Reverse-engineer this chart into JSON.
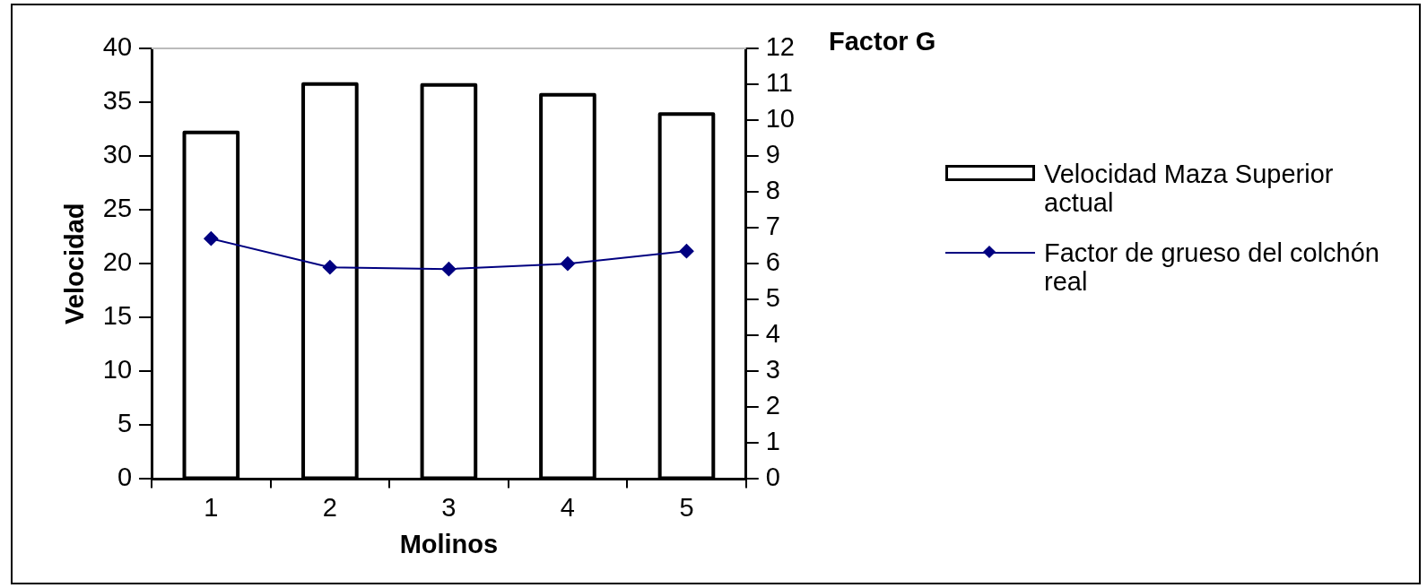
{
  "chart_data": {
    "type": "bar",
    "xlabel": "Molinos",
    "ylabel": "Velocidad",
    "y2label": "Factor G",
    "categories": [
      "1",
      "2",
      "3",
      "4",
      "5"
    ],
    "series": [
      {
        "name": "Velocidad Maza Superior actual",
        "color": "#000000",
        "values": [
          32.2,
          36.7,
          36.6,
          35.7,
          33.9
        ]
      },
      {
        "name": "Factor de grueso del colchón real",
        "type": "line",
        "axis": "y2",
        "color": "#000080",
        "values": [
          6.7,
          5.9,
          5.85,
          6.0,
          6.35
        ]
      }
    ],
    "ylim": [
      0,
      40
    ],
    "yticks": [
      0,
      5,
      10,
      15,
      20,
      25,
      30,
      35,
      40
    ],
    "y2lim": [
      0,
      12
    ],
    "y2ticks": [
      0,
      1,
      2,
      3,
      4,
      5,
      6,
      7,
      8,
      9,
      10,
      11,
      12
    ],
    "grid": false,
    "legend": "right",
    "marker": "diamond",
    "line_style": "solid"
  }
}
